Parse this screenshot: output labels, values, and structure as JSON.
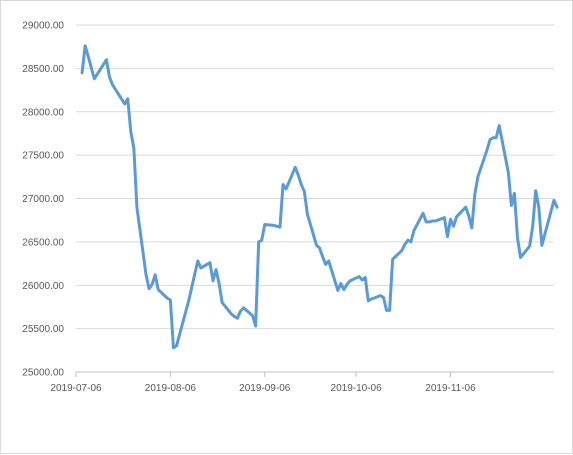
{
  "chart_data": {
    "type": "line",
    "title": "",
    "xlabel": "",
    "ylabel": "",
    "ylim": [
      25000,
      29000
    ],
    "xlim": [
      "2019-07-06",
      "2019-12-10"
    ],
    "grid": "horizontal",
    "legend": "none",
    "x_tick_labels": [
      "2019-07-06",
      "2019-08-06",
      "2019-09-06",
      "2019-10-06",
      "2019-11-06"
    ],
    "y_tick_labels": [
      "25000.00",
      "25500.00",
      "26000.00",
      "26500.00",
      "27000.00",
      "27500.00",
      "28000.00",
      "28500.00",
      "29000.00"
    ],
    "colors": {
      "line": "#5b9bd5",
      "grid": "#d9d9d9",
      "axis": "#bfbfbf",
      "text": "#595959"
    },
    "series": [
      {
        "points": [
          [
            "2019-07-08",
            28450
          ],
          [
            "2019-07-09",
            28760
          ],
          [
            "2019-07-10",
            28640
          ],
          [
            "2019-07-12",
            28380
          ],
          [
            "2019-07-16",
            28600
          ],
          [
            "2019-07-17",
            28400
          ],
          [
            "2019-07-18",
            28310
          ],
          [
            "2019-07-22",
            28090
          ],
          [
            "2019-07-23",
            28150
          ],
          [
            "2019-07-24",
            27770
          ],
          [
            "2019-07-25",
            27580
          ],
          [
            "2019-07-26",
            26900
          ],
          [
            "2019-07-29",
            26120
          ],
          [
            "2019-07-30",
            25960
          ],
          [
            "2019-07-31",
            26010
          ],
          [
            "2019-08-01",
            26120
          ],
          [
            "2019-08-02",
            25950
          ],
          [
            "2019-08-05",
            25850
          ],
          [
            "2019-08-06",
            25830
          ],
          [
            "2019-08-07",
            25280
          ],
          [
            "2019-08-08",
            25300
          ],
          [
            "2019-08-12",
            25820
          ],
          [
            "2019-08-15",
            26280
          ],
          [
            "2019-08-16",
            26200
          ],
          [
            "2019-08-19",
            26260
          ],
          [
            "2019-08-20",
            26050
          ],
          [
            "2019-08-21",
            26180
          ],
          [
            "2019-08-22",
            26020
          ],
          [
            "2019-08-23",
            25800
          ],
          [
            "2019-08-26",
            25670
          ],
          [
            "2019-08-27",
            25640
          ],
          [
            "2019-08-28",
            25620
          ],
          [
            "2019-08-29",
            25700
          ],
          [
            "2019-08-30",
            25740
          ],
          [
            "2019-09-02",
            25650
          ],
          [
            "2019-09-03",
            25530
          ],
          [
            "2019-09-04",
            26500
          ],
          [
            "2019-09-05",
            26520
          ],
          [
            "2019-09-06",
            26700
          ],
          [
            "2019-09-09",
            26690
          ],
          [
            "2019-09-10",
            26680
          ],
          [
            "2019-09-11",
            26670
          ],
          [
            "2019-09-12",
            27160
          ],
          [
            "2019-09-13",
            27110
          ],
          [
            "2019-09-16",
            27360
          ],
          [
            "2019-09-17",
            27270
          ],
          [
            "2019-09-18",
            27160
          ],
          [
            "2019-09-19",
            27080
          ],
          [
            "2019-09-20",
            26820
          ],
          [
            "2019-09-23",
            26460
          ],
          [
            "2019-09-24",
            26430
          ],
          [
            "2019-09-25",
            26330
          ],
          [
            "2019-09-26",
            26240
          ],
          [
            "2019-09-27",
            26280
          ],
          [
            "2019-09-30",
            25940
          ],
          [
            "2019-10-01",
            26020
          ],
          [
            "2019-10-02",
            25950
          ],
          [
            "2019-10-03",
            26010
          ],
          [
            "2019-10-04",
            26050
          ],
          [
            "2019-10-07",
            26100
          ],
          [
            "2019-10-08",
            26060
          ],
          [
            "2019-10-09",
            26090
          ],
          [
            "2019-10-10",
            25820
          ],
          [
            "2019-10-11",
            25840
          ],
          [
            "2019-10-14",
            25880
          ],
          [
            "2019-10-15",
            25860
          ],
          [
            "2019-10-16",
            25710
          ],
          [
            "2019-10-17",
            25710
          ],
          [
            "2019-10-18",
            26300
          ],
          [
            "2019-10-21",
            26400
          ],
          [
            "2019-10-22",
            26470
          ],
          [
            "2019-10-23",
            26520
          ],
          [
            "2019-10-24",
            26500
          ],
          [
            "2019-10-25",
            26630
          ],
          [
            "2019-10-28",
            26830
          ],
          [
            "2019-10-29",
            26730
          ],
          [
            "2019-10-30",
            26730
          ],
          [
            "2019-10-31",
            26740
          ],
          [
            "2019-11-01",
            26740
          ],
          [
            "2019-11-04",
            26780
          ],
          [
            "2019-11-05",
            26560
          ],
          [
            "2019-11-06",
            26760
          ],
          [
            "2019-11-07",
            26680
          ],
          [
            "2019-11-08",
            26790
          ],
          [
            "2019-11-11",
            26900
          ],
          [
            "2019-11-12",
            26800
          ],
          [
            "2019-11-13",
            26660
          ],
          [
            "2019-11-14",
            27050
          ],
          [
            "2019-11-15",
            27250
          ],
          [
            "2019-11-18",
            27560
          ],
          [
            "2019-11-19",
            27680
          ],
          [
            "2019-11-20",
            27700
          ],
          [
            "2019-11-21",
            27700
          ],
          [
            "2019-11-22",
            27840
          ],
          [
            "2019-11-25",
            27300
          ],
          [
            "2019-11-26",
            26920
          ],
          [
            "2019-11-27",
            27060
          ],
          [
            "2019-11-28",
            26550
          ],
          [
            "2019-11-29",
            26320
          ],
          [
            "2019-12-02",
            26450
          ],
          [
            "2019-12-03",
            26680
          ],
          [
            "2019-12-04",
            27090
          ],
          [
            "2019-12-05",
            26900
          ],
          [
            "2019-12-06",
            26460
          ],
          [
            "2019-12-09",
            26850
          ],
          [
            "2019-12-10",
            26980
          ],
          [
            "2019-12-11",
            26900
          ]
        ]
      }
    ]
  }
}
